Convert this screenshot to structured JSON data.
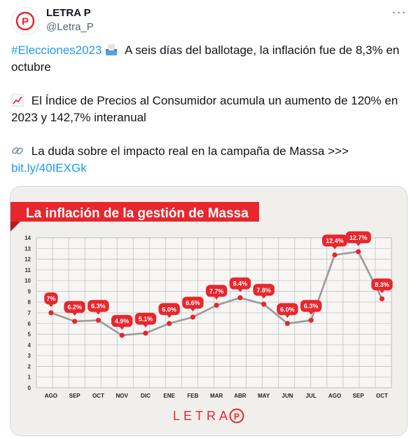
{
  "account": {
    "name": "LETRA P",
    "handle": "@Letra_P",
    "avatar_letter": "P",
    "more_label": "···"
  },
  "tweet": {
    "hashtag": "#Elecciones2023",
    "line1_rest": "A seis días del ballotage, la inflación fue de 8,3% en octubre",
    "line2": "El Índice de Precios al Consumidor acumula un aumento de 120% en 2023 y 142,7% interanual",
    "line3": "La duda sobre el impacto real en la campaña de Massa >>>",
    "link": "bit.ly/40IEXGk",
    "icons": [
      "ballot-box-icon",
      "chart-increasing-icon",
      "link-icon"
    ]
  },
  "colors": {
    "brand_red": "#e8262d",
    "link_blue": "#1d9bf0",
    "line_gray": "#9a9a9a"
  },
  "chart_data": {
    "type": "line",
    "title": "La inflación de la gestión de Massa",
    "categories": [
      "AGO",
      "SEP",
      "OCT",
      "NOV",
      "DIC",
      "ENE",
      "FEB",
      "MAR",
      "ABR",
      "MAY",
      "JUN",
      "JUL",
      "AGO",
      "SEP",
      "OCT"
    ],
    "values": [
      7.0,
      6.2,
      6.3,
      4.9,
      5.1,
      6.0,
      6.6,
      7.7,
      8.4,
      7.8,
      6.0,
      6.3,
      12.4,
      12.7,
      8.3
    ],
    "labels": [
      "7%",
      "6.2%",
      "6.3%",
      "4.9%",
      "5.1%",
      "6.0%",
      "6.6%",
      "7.7%",
      "8.4%",
      "7.8%",
      "6.0%",
      "6.3%",
      "12.4%",
      "12.7%",
      "8.3%"
    ],
    "ylim": [
      0,
      14
    ],
    "yticks": [
      "0",
      "1",
      "2",
      "3",
      "4",
      "5",
      "6",
      "7",
      "8",
      "9",
      "10",
      "11",
      "12",
      "13",
      "14"
    ],
    "grid": true,
    "brand": "LETRA",
    "brand_letter": "P"
  }
}
